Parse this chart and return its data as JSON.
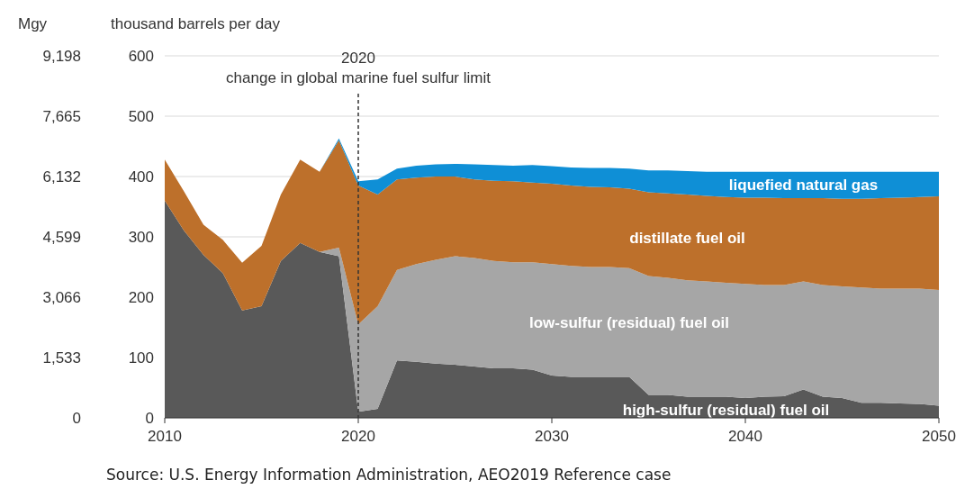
{
  "chart_data": {
    "type": "area",
    "stacked": true,
    "ylabel": "thousand barrels per day",
    "y2label": "Mgy",
    "x": [
      2010,
      2011,
      2012,
      2013,
      2014,
      2015,
      2016,
      2017,
      2018,
      2019,
      2020,
      2021,
      2022,
      2023,
      2024,
      2025,
      2026,
      2027,
      2028,
      2029,
      2030,
      2031,
      2032,
      2033,
      2034,
      2035,
      2036,
      2037,
      2038,
      2039,
      2040,
      2041,
      2042,
      2043,
      2044,
      2045,
      2046,
      2047,
      2048,
      2049,
      2050
    ],
    "series": [
      {
        "name": "high-sulfur (residual) fuel oil",
        "color": "#595959",
        "values": [
          360,
          310,
          270,
          240,
          178,
          185,
          260,
          290,
          275,
          268,
          10,
          15,
          95,
          93,
          90,
          88,
          85,
          82,
          82,
          80,
          70,
          68,
          68,
          68,
          68,
          38,
          38,
          35,
          35,
          35,
          33,
          35,
          36,
          47,
          35,
          33,
          25,
          25,
          24,
          23,
          20
        ]
      },
      {
        "name": "low-sulfur (residual) fuel oil",
        "color": "#a6a6a6",
        "values": [
          0,
          0,
          0,
          0,
          0,
          0,
          0,
          0,
          0,
          14,
          145,
          170,
          150,
          162,
          172,
          180,
          180,
          178,
          176,
          178,
          185,
          184,
          182,
          182,
          180,
          197,
          194,
          193,
          191,
          189,
          189,
          185,
          184,
          179,
          185,
          185,
          191,
          189,
          190,
          191,
          192
        ]
      },
      {
        "name": "distillate fuel oil",
        "color": "#bd702b",
        "values": [
          68,
          65,
          50,
          55,
          79,
          100,
          110,
          138,
          133,
          178,
          230,
          185,
          150,
          143,
          138,
          132,
          130,
          133,
          134,
          132,
          133,
          133,
          133,
          132,
          132,
          139,
          140,
          142,
          142,
          142,
          143,
          145,
          144,
          138,
          144,
          145,
          147,
          150,
          151,
          152,
          155
        ]
      },
      {
        "name": "liquefied natural gas",
        "color": "#0f8fd6",
        "values": [
          0,
          0,
          0,
          0,
          0,
          0,
          0,
          0,
          0,
          3,
          7,
          25,
          18,
          20,
          20,
          21,
          25,
          26,
          26,
          29,
          29,
          30,
          31,
          32,
          33,
          36,
          38,
          39,
          40,
          42,
          43,
          43,
          44,
          44,
          44,
          45,
          45,
          44,
          43,
          42,
          41
        ]
      }
    ],
    "xlim": [
      2010,
      2050
    ],
    "xticks": [
      2010,
      2020,
      2030,
      2040,
      2050
    ],
    "ylim": [
      0,
      600
    ],
    "yticks": [
      0,
      100,
      200,
      300,
      400,
      500,
      600
    ],
    "y2lim": [
      0,
      9198
    ],
    "y2ticks": [
      {
        "value": 0,
        "label": "0"
      },
      {
        "value": 1533,
        "label": "1,533"
      },
      {
        "value": 3066,
        "label": "3,066"
      },
      {
        "value": 4599,
        "label": "4,599"
      },
      {
        "value": 6132,
        "label": "6,132"
      },
      {
        "value": 7665,
        "label": "7,665"
      },
      {
        "value": 9198,
        "label": "9,198"
      }
    ],
    "grid": "y",
    "ref_lines": [
      {
        "axis": "x",
        "value": 2020,
        "label": "2020\nchange in global marine fuel sulfur limit",
        "line_style": "dashed",
        "color": "#333333"
      }
    ],
    "annotations": [
      "Source: U.S. Energy Information Administration, AEO2019 Reference case"
    ]
  }
}
